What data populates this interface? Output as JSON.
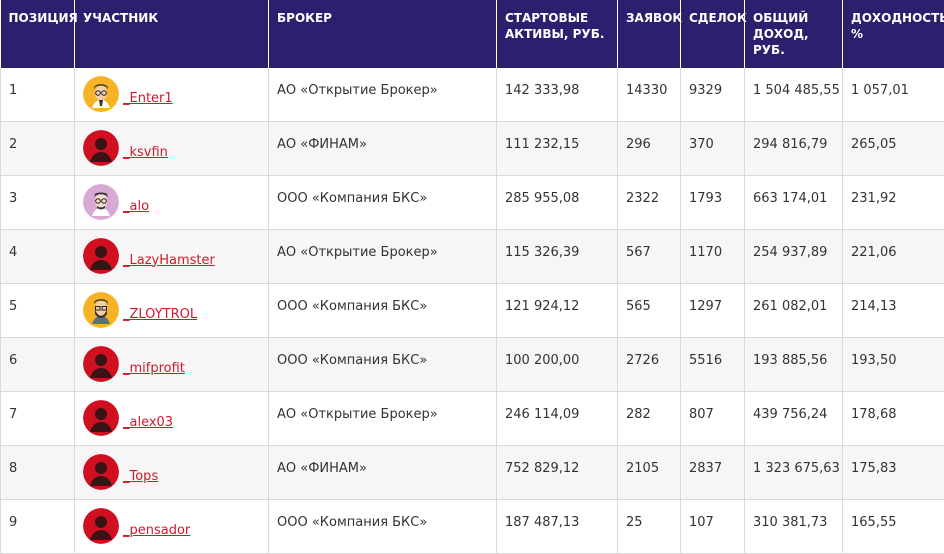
{
  "colors": {
    "header_bg": "#2d1f6e",
    "link": "#cc1b2b",
    "avatar_red": "#d01020",
    "avatar_gold": "#f5b325",
    "avatar_pink": "#d9a9d6"
  },
  "headers": [
    "ПОЗИЦИЯ",
    "УЧАСТНИК",
    "БРОКЕР",
    "СТАРТОВЫЕ АКТИВЫ, РУБ.",
    "ЗАЯВОК",
    "СДЕЛОК",
    "ОБЩИЙ ДОХОД, РУБ.",
    "ДОХОДНОСТЬ, %"
  ],
  "rows": [
    {
      "pos": "1",
      "user": "_Enter1",
      "avatar": "geek-avatar-gold",
      "broker": "АО «Открытие Брокер»",
      "assets": "142 333,98",
      "orders": "14330",
      "deals": "9329",
      "income": "1 504 485,55",
      "yield": "1 057,01"
    },
    {
      "pos": "2",
      "user": "_ksvfin",
      "avatar": "default-avatar-red",
      "broker": "АО «ФИНАМ»",
      "assets": "111 232,15",
      "orders": "296",
      "deals": "370",
      "income": "294 816,79",
      "yield": "265,05"
    },
    {
      "pos": "3",
      "user": "_alo",
      "avatar": "geek-avatar-pink",
      "broker": "ООО «Компания БКС»",
      "assets": "285 955,08",
      "orders": "2322",
      "deals": "1793",
      "income": "663 174,01",
      "yield": "231,92"
    },
    {
      "pos": "4",
      "user": "_LazyHamster",
      "avatar": "default-avatar-red",
      "broker": "АО «Открытие Брокер»",
      "assets": "115 326,39",
      "orders": "567",
      "deals": "1170",
      "income": "254 937,89",
      "yield": "221,06"
    },
    {
      "pos": "5",
      "user": "_ZLOYTROL",
      "avatar": "bearded-avatar-gold",
      "broker": "ООО «Компания БКС»",
      "assets": "121 924,12",
      "orders": "565",
      "deals": "1297",
      "income": "261 082,01",
      "yield": "214,13"
    },
    {
      "pos": "6",
      "user": "_mifprofit",
      "avatar": "default-avatar-red",
      "broker": "ООО «Компания БКС»",
      "assets": "100 200,00",
      "orders": "2726",
      "deals": "5516",
      "income": "193 885,56",
      "yield": "193,50"
    },
    {
      "pos": "7",
      "user": "_alex03",
      "avatar": "default-avatar-red",
      "broker": "АО «Открытие Брокер»",
      "assets": "246 114,09",
      "orders": "282",
      "deals": "807",
      "income": "439 756,24",
      "yield": "178,68"
    },
    {
      "pos": "8",
      "user": "_Tops",
      "avatar": "default-avatar-red",
      "broker": "АО «ФИНАМ»",
      "assets": "752 829,12",
      "orders": "2105",
      "deals": "2837",
      "income": "1 323 675,63",
      "yield": "175,83"
    },
    {
      "pos": "9",
      "user": "_pensador",
      "avatar": "default-avatar-red",
      "broker": "ООО «Компания БКС»",
      "assets": "187 487,13",
      "orders": "25",
      "deals": "107",
      "income": "310 381,73",
      "yield": "165,55"
    }
  ]
}
